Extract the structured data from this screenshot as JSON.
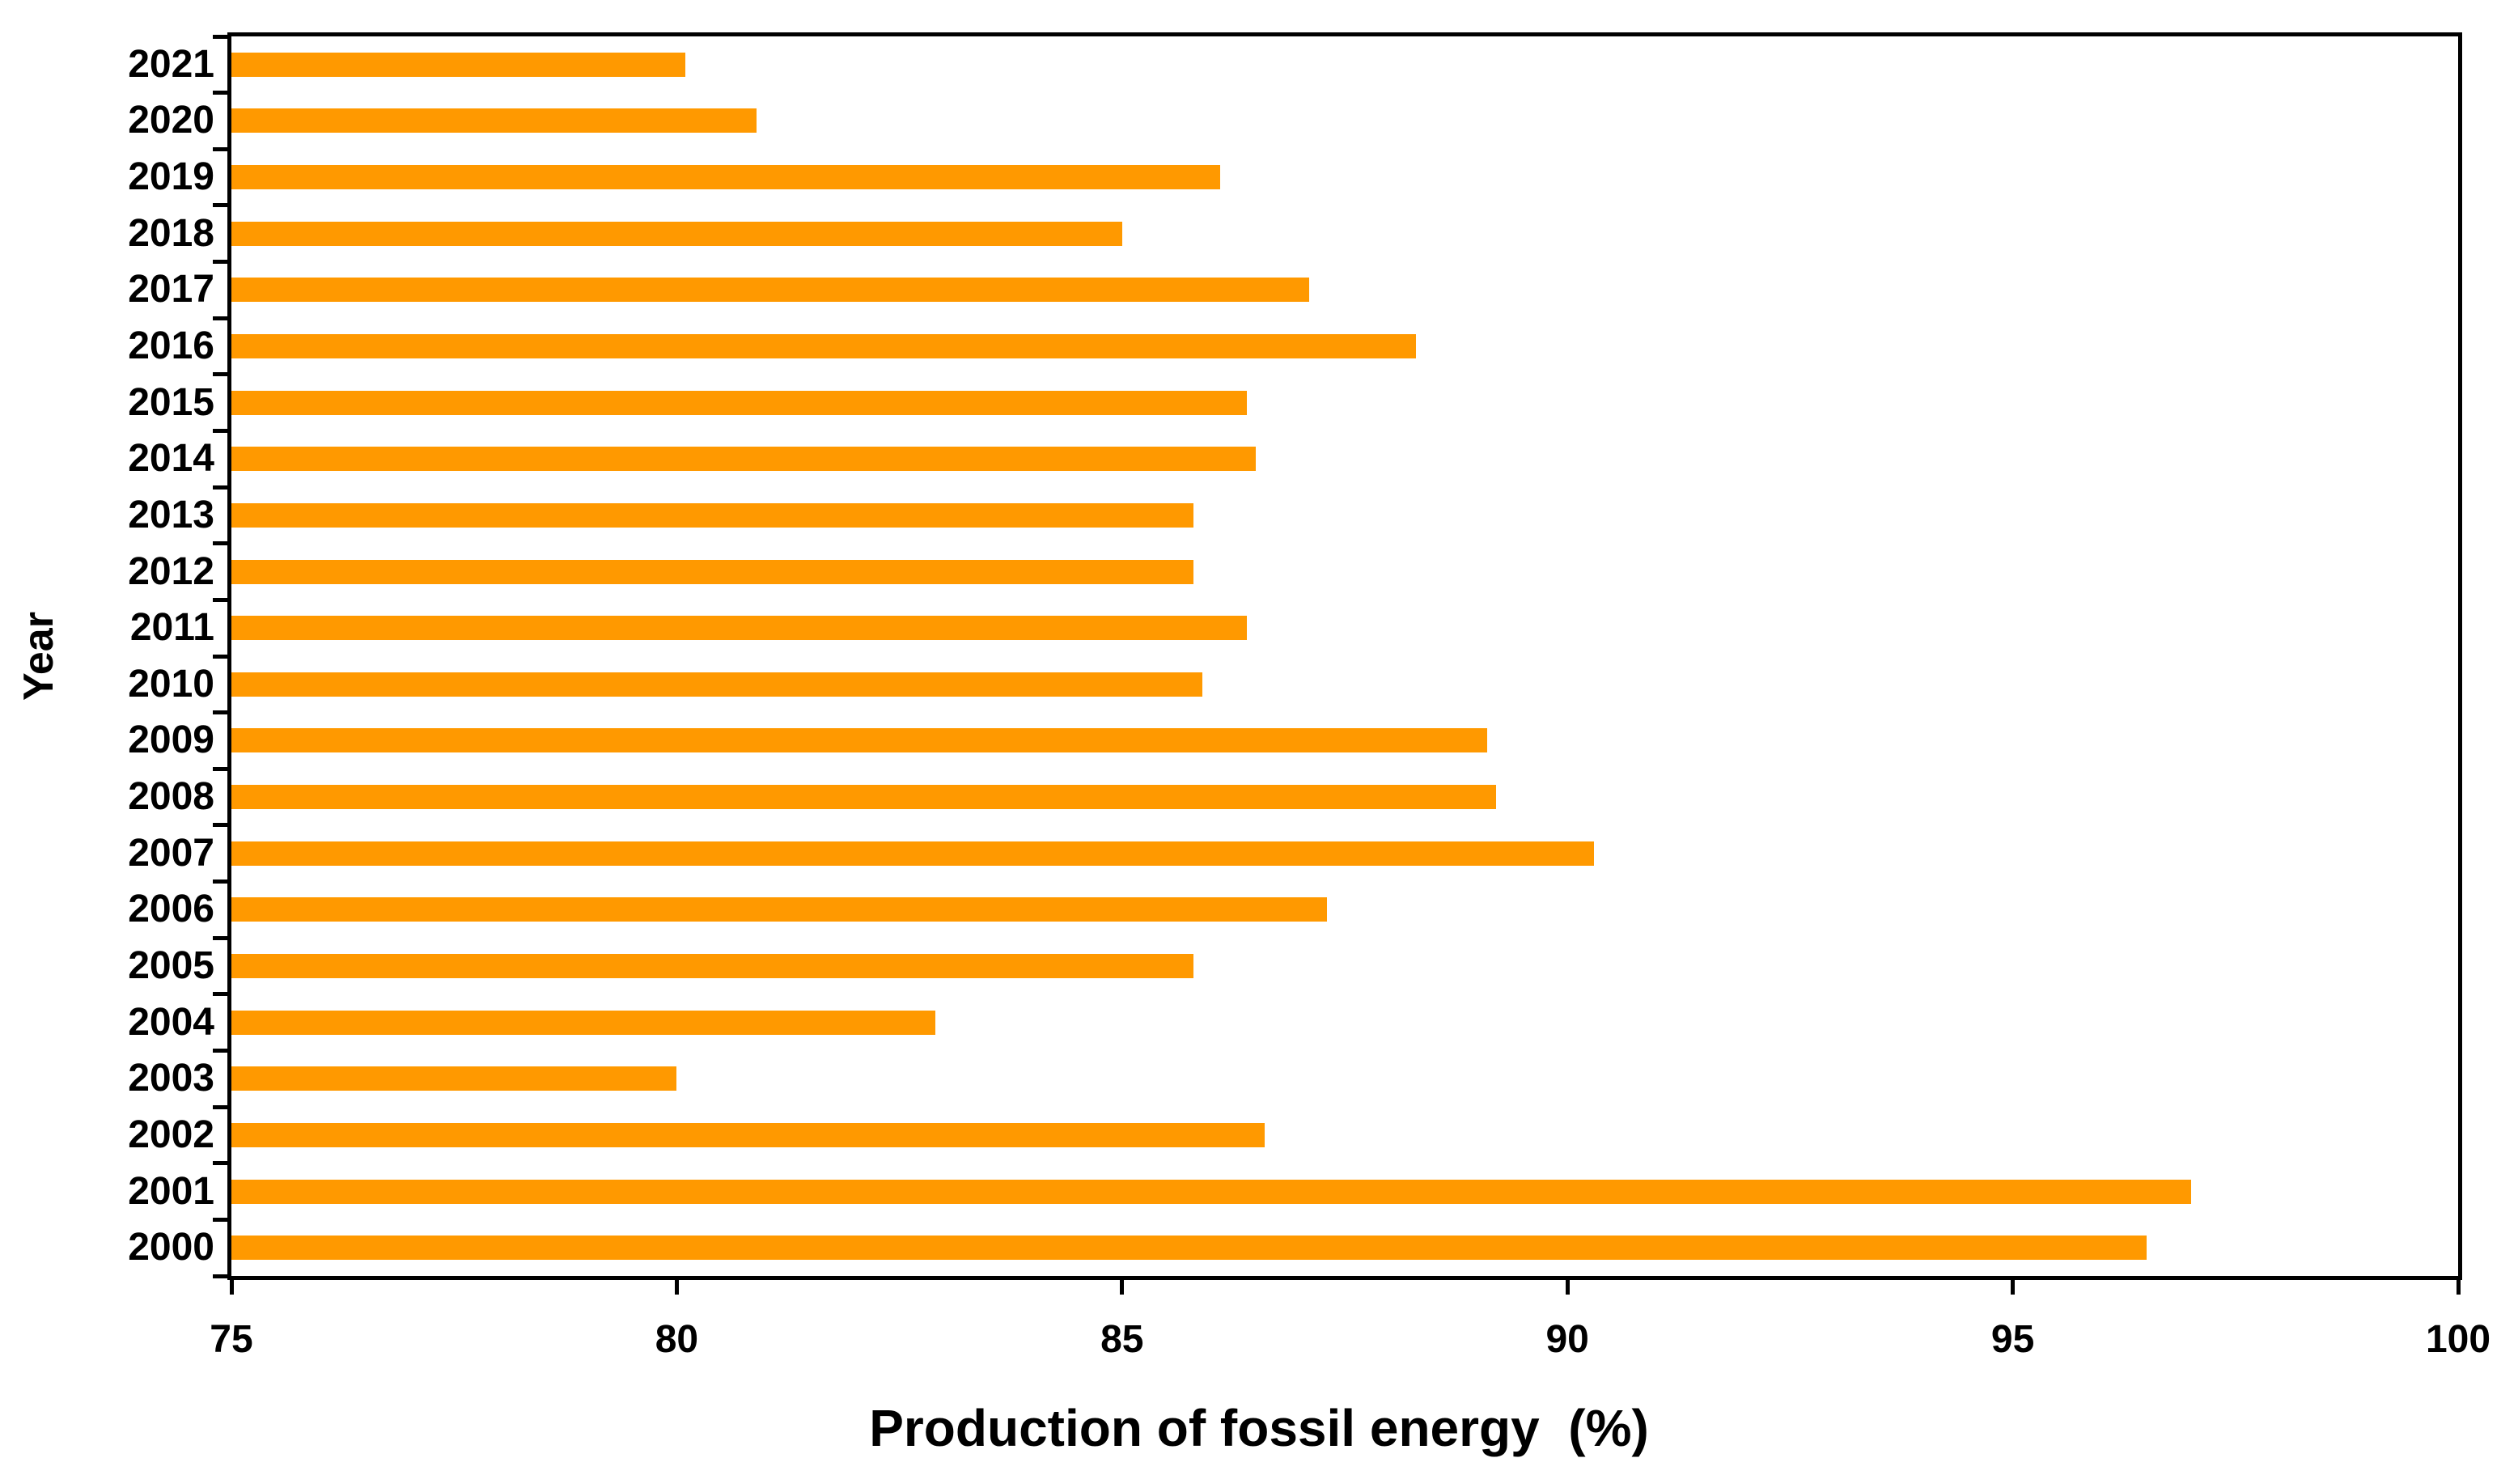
{
  "chart_data": {
    "type": "bar",
    "orientation": "horizontal",
    "title": "",
    "xlabel": "Production of fossil energy  (%)",
    "ylabel": "Year",
    "categories": [
      "2021",
      "2020",
      "2019",
      "2018",
      "2017",
      "2016",
      "2015",
      "2014",
      "2013",
      "2012",
      "2011",
      "2010",
      "2009",
      "2008",
      "2007",
      "2006",
      "2005",
      "2004",
      "2003",
      "2002",
      "2001",
      "2000"
    ],
    "values": [
      80.1,
      80.9,
      86.1,
      85.0,
      87.1,
      88.3,
      86.4,
      86.5,
      85.8,
      85.8,
      86.4,
      85.9,
      89.1,
      89.2,
      90.3,
      87.3,
      85.8,
      82.9,
      80.0,
      86.6,
      97.0,
      96.5
    ],
    "xlim": [
      75,
      100
    ],
    "xticks": [
      75,
      80,
      85,
      90,
      95,
      100
    ],
    "grid": false,
    "legend": null,
    "bar_color": "#FF9900",
    "axis_color": "#000000",
    "background_color": "#FFFFFF"
  }
}
